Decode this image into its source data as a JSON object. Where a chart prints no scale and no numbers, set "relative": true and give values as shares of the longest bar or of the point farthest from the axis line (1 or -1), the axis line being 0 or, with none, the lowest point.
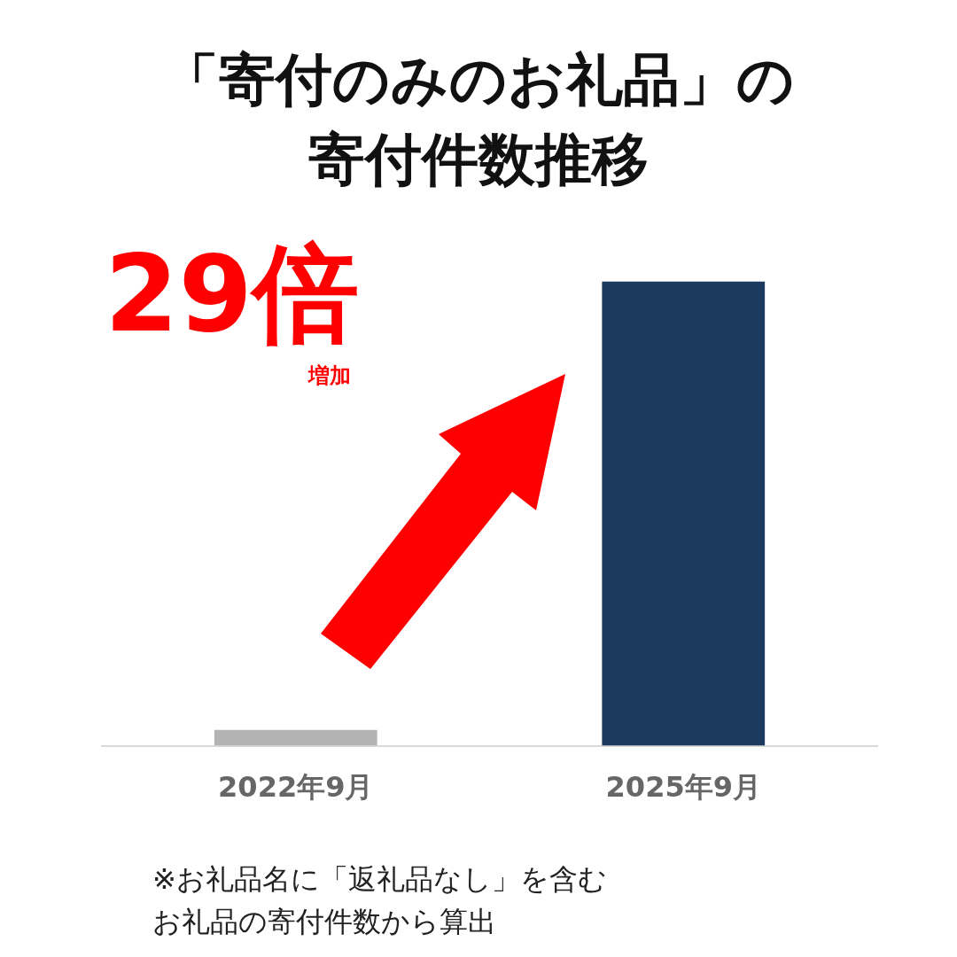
{
  "chart_data": {
    "type": "bar",
    "title": "「寄付のみのお礼品」の寄付件数推移",
    "categories": [
      "2022年9月",
      "2025年9月"
    ],
    "values": [
      0.034,
      1
    ],
    "colors": [
      "#b3b3b3",
      "#1b3a5e"
    ],
    "relative": true,
    "annotations": [
      "29倍",
      "増加",
      "※お礼品名に「返礼品なし」を含むお礼品の寄付件数から算出"
    ]
  }
}
